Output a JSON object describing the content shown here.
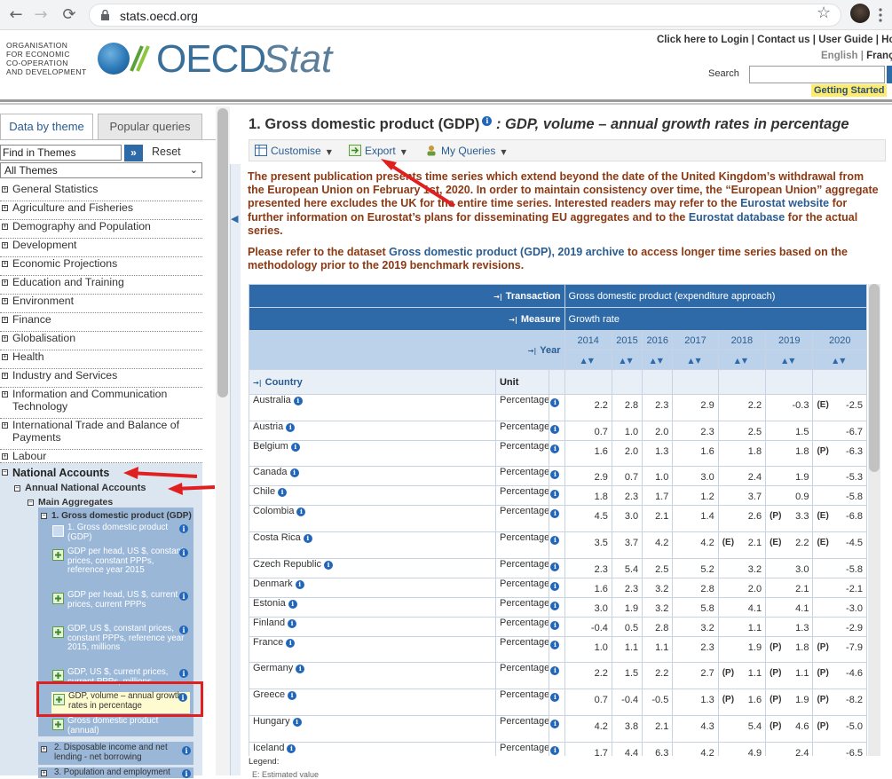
{
  "browser": {
    "url": "stats.oecd.org",
    "back_glyph": "←",
    "forward_glyph": "→",
    "reload_glyph": "⟳",
    "star_glyph": "☆"
  },
  "header": {
    "org_line1": "ORGANISATION",
    "org_line2": "FOR ECONOMIC",
    "org_line3": "CO-OPERATION",
    "org_line4": "AND DEVELOPMENT",
    "logo_oecd": "OECD.",
    "logo_stat": "Stat",
    "login_link": "Click here to Login",
    "contact_link": "Contact us",
    "guide_link": "User Guide",
    "home_link": "Hor",
    "sep": "|",
    "lang_en": "English",
    "lang_fr": "Franç",
    "search_label": "Search",
    "getting_started": "Getting Started"
  },
  "sidebar": {
    "tab_data": "Data by theme",
    "tab_popular": "Popular queries",
    "find_placeholder": "Find in Themes",
    "find_btn": "»",
    "reset": "Reset",
    "themes_selected": "All Themes",
    "themes": [
      "General Statistics",
      "Agriculture and Fisheries",
      "Demography and Population",
      "Development",
      "Economic Projections",
      "Education and Training",
      "Environment",
      "Finance",
      "Globalisation",
      "Health",
      "Industry and Services",
      "Information and Communication Technology",
      "International Trade and Balance of Payments",
      "Labour"
    ],
    "national_accounts": "National Accounts",
    "annual_national_accounts": "Annual National Accounts",
    "main_aggregates": "Main Aggregates",
    "gdp_group": "1. Gross domestic product (GDP)",
    "datasets": [
      "1. Gross domestic product (GDP)",
      "GDP per head, US $, constant prices, constant PPPs, reference year 2015",
      "GDP per head, US $, current prices, current PPPs",
      "GDP, US $, constant prices, constant PPPs, reference year 2015, millions",
      "GDP, US $, current prices, current PPPs, millions",
      "GDP, volume – annual growth rates in percentage",
      "Gross domestic product (annual)"
    ],
    "sub_group2": "2. Disposable income and net lending - net borrowing",
    "sub_group3": "3. Population and employment"
  },
  "main": {
    "title_num": "1. Gross domestic product (GDP)",
    "title_sub": ": GDP, volume – annual growth rates in percentage",
    "toolbar": {
      "customise": "Customise",
      "export": "Export",
      "my_queries": "My Queries"
    },
    "notice_p1_a": "The present publication presents time series which extend beyond the date of the United Kingdom’s withdrawal from the European Union on  February 1st, 2020. In order to maintain consistency over time, the “European Union” aggregate presented here excludes the UK for the entire time series. Interested readers may refer to the ",
    "notice_link1": "Eurostat website",
    "notice_p1_b": " for further information on Eurostat’s plans for disseminating EU aggregates and to the ",
    "notice_link2": "Eurostat database",
    "notice_p1_c": " for the actual series.",
    "notice_p2_a": "Please refer to the dataset ",
    "notice_link3": "Gross domestic product (GDP), 2019 archive",
    "notice_p2_b": " to access longer time series based on the methodology prior to the 2019 benchmark revisions."
  },
  "table": {
    "transaction_label": "Transaction",
    "transaction_value": "Gross domestic product (expenditure approach)",
    "measure_label": "Measure",
    "measure_value": "Growth rate",
    "year_label": "Year",
    "country_label": "Country",
    "unit_label": "Unit",
    "years": [
      "2014",
      "2015",
      "2016",
      "2017",
      "2018",
      "2019",
      "2020"
    ],
    "rows": [
      {
        "country": "Australia",
        "unit": "Percentage",
        "v": [
          "2.2",
          "2.8",
          "2.3",
          "2.9",
          "2.2",
          "-0.3",
          "-2.5"
        ],
        "f": [
          "",
          "",
          "",
          "",
          "",
          "",
          "(E)"
        ]
      },
      {
        "country": "Austria",
        "unit": "Percentage",
        "v": [
          "0.7",
          "1.0",
          "2.0",
          "2.3",
          "2.5",
          "1.5",
          "-6.7"
        ],
        "f": [
          "",
          "",
          "",
          "",
          "",
          "",
          ""
        ]
      },
      {
        "country": "Belgium",
        "unit": "Percentage",
        "v": [
          "1.6",
          "2.0",
          "1.3",
          "1.6",
          "1.8",
          "1.8",
          "-6.3"
        ],
        "f": [
          "",
          "",
          "",
          "",
          "",
          "",
          "(P)"
        ]
      },
      {
        "country": "Canada",
        "unit": "Percentage",
        "v": [
          "2.9",
          "0.7",
          "1.0",
          "3.0",
          "2.4",
          "1.9",
          "-5.3"
        ],
        "f": [
          "",
          "",
          "",
          "",
          "",
          "",
          ""
        ]
      },
      {
        "country": "Chile",
        "unit": "Percentage",
        "v": [
          "1.8",
          "2.3",
          "1.7",
          "1.2",
          "3.7",
          "0.9",
          "-5.8"
        ],
        "f": [
          "",
          "",
          "",
          "",
          "",
          "",
          ""
        ]
      },
      {
        "country": "Colombia",
        "unit": "Percentage",
        "v": [
          "4.5",
          "3.0",
          "2.1",
          "1.4",
          "2.6",
          "3.3",
          "-6.8"
        ],
        "f": [
          "",
          "",
          "",
          "",
          "",
          "(P)",
          "(E)"
        ]
      },
      {
        "country": "Costa Rica",
        "unit": "Percentage",
        "v": [
          "3.5",
          "3.7",
          "4.2",
          "4.2",
          "2.1",
          "2.2",
          "-4.5"
        ],
        "f": [
          "",
          "",
          "",
          "",
          "(E)",
          "(E)",
          "(E)"
        ]
      },
      {
        "country": "Czech Republic",
        "unit": "Percentage",
        "v": [
          "2.3",
          "5.4",
          "2.5",
          "5.2",
          "3.2",
          "3.0",
          "-5.8"
        ],
        "f": [
          "",
          "",
          "",
          "",
          "",
          "",
          ""
        ]
      },
      {
        "country": "Denmark",
        "unit": "Percentage",
        "v": [
          "1.6",
          "2.3",
          "3.2",
          "2.8",
          "2.0",
          "2.1",
          "-2.1"
        ],
        "f": [
          "",
          "",
          "",
          "",
          "",
          "",
          ""
        ]
      },
      {
        "country": "Estonia",
        "unit": "Percentage",
        "v": [
          "3.0",
          "1.9",
          "3.2",
          "5.8",
          "4.1",
          "4.1",
          "-3.0"
        ],
        "f": [
          "",
          "",
          "",
          "",
          "",
          "",
          ""
        ]
      },
      {
        "country": "Finland",
        "unit": "Percentage",
        "v": [
          "-0.4",
          "0.5",
          "2.8",
          "3.2",
          "1.1",
          "1.3",
          "-2.9"
        ],
        "f": [
          "",
          "",
          "",
          "",
          "",
          "",
          ""
        ]
      },
      {
        "country": "France",
        "unit": "Percentage",
        "v": [
          "1.0",
          "1.1",
          "1.1",
          "2.3",
          "1.9",
          "1.8",
          "-7.9"
        ],
        "f": [
          "",
          "",
          "",
          "",
          "",
          "(P)",
          "(P)"
        ]
      },
      {
        "country": "Germany",
        "unit": "Percentage",
        "v": [
          "2.2",
          "1.5",
          "2.2",
          "2.7",
          "1.1",
          "1.1",
          "-4.6"
        ],
        "f": [
          "",
          "",
          "",
          "",
          "(P)",
          "(P)",
          "(P)"
        ]
      },
      {
        "country": "Greece",
        "unit": "Percentage",
        "v": [
          "0.7",
          "-0.4",
          "-0.5",
          "1.3",
          "1.6",
          "1.9",
          "-8.2"
        ],
        "f": [
          "",
          "",
          "",
          "",
          "(P)",
          "(P)",
          "(P)"
        ]
      },
      {
        "country": "Hungary",
        "unit": "Percentage",
        "v": [
          "4.2",
          "3.8",
          "2.1",
          "4.3",
          "5.4",
          "4.6",
          "-5.0"
        ],
        "f": [
          "",
          "",
          "",
          "",
          "",
          "(P)",
          "(P)"
        ]
      },
      {
        "country": "Iceland",
        "unit": "Percentage",
        "v": [
          "1.7",
          "4.4",
          "6.3",
          "4.2",
          "4.9",
          "2.4",
          "-6.5"
        ],
        "f": [
          "",
          "",
          "",
          "",
          "",
          "",
          ""
        ]
      }
    ],
    "legend": "Legend:",
    "legend_e": "E: Estimated value"
  },
  "colors": {
    "accent": "#2f6aa8",
    "notice_brown": "#8b3a14",
    "annotation_red": "#e02020"
  }
}
